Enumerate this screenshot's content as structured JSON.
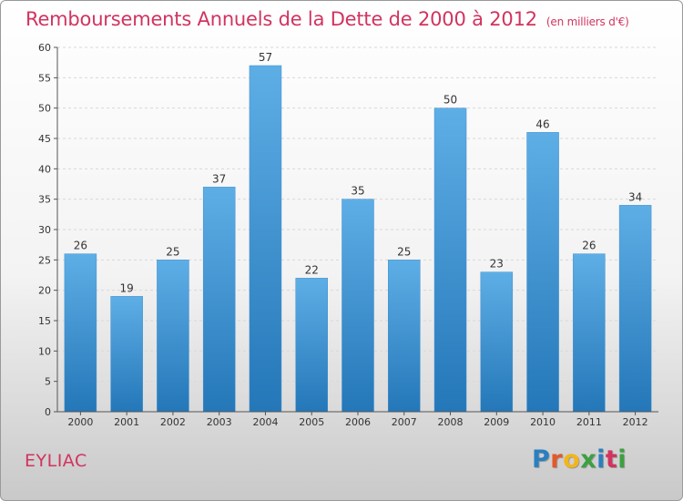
{
  "header": {
    "title": "Remboursements Annuels de la Dette de 2000 à 2012",
    "unit": "(en milliers d'€)"
  },
  "footer": {
    "commune": "EYLIAC",
    "logo_letters": [
      "P",
      "r",
      "o",
      "x",
      "i",
      "t",
      "i"
    ],
    "logo_colors": [
      "#2a7fc0",
      "#e2592a",
      "#f2b51c",
      "#3da042",
      "#2a7fc0",
      "#d2335f",
      "#3da042"
    ]
  },
  "colors": {
    "bar_light": "#5eaee6",
    "bar_dark": "#2477b8",
    "title": "#d2335f",
    "grid": "#d8d8d8",
    "axis": "#555555"
  },
  "chart_data": {
    "type": "bar",
    "title": "Remboursements Annuels de la Dette de 2000 à 2012",
    "subtitle": "(en milliers d'€)",
    "categories": [
      "2000",
      "2001",
      "2002",
      "2003",
      "2004",
      "2005",
      "2006",
      "2007",
      "2008",
      "2009",
      "2010",
      "2011",
      "2012"
    ],
    "values": [
      26,
      19,
      25,
      37,
      57,
      22,
      35,
      25,
      50,
      23,
      46,
      26,
      34
    ],
    "ylim": [
      0,
      60
    ],
    "yticks": [
      0,
      5,
      10,
      15,
      20,
      25,
      30,
      35,
      40,
      45,
      50,
      55,
      60
    ],
    "grid": "horizontal dashed",
    "legend": "none"
  }
}
